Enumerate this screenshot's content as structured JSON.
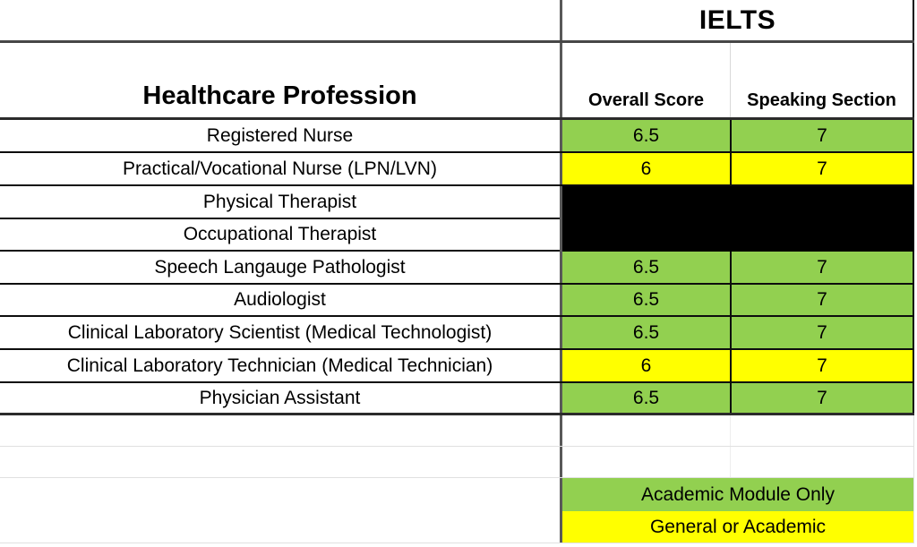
{
  "colors": {
    "green": "#92D050",
    "yellow": "#FFFF00",
    "black_cell": "#000000"
  },
  "header": {
    "test_name": "IELTS",
    "profession_column": "Healthcare Profession",
    "overall_column": "Overall Score",
    "speaking_column": "Speaking Section"
  },
  "rows": [
    {
      "profession": "Registered Nurse",
      "overall": "6.5",
      "speaking": "7",
      "module": "academic"
    },
    {
      "profession": "Practical/Vocational Nurse (LPN/LVN)",
      "overall": "6",
      "speaking": "7",
      "module": "general"
    },
    {
      "profession": "Physical Therapist",
      "overall": "",
      "speaking": "",
      "module": "redacted"
    },
    {
      "profession": "Occupational Therapist",
      "overall": "",
      "speaking": "",
      "module": "redacted"
    },
    {
      "profession": "Speech Langauge Pathologist",
      "overall": "6.5",
      "speaking": "7",
      "module": "academic"
    },
    {
      "profession": "Audiologist",
      "overall": "6.5",
      "speaking": "7",
      "module": "academic"
    },
    {
      "profession": "Clinical Laboratory Scientist (Medical Technologist)",
      "overall": "6.5",
      "speaking": "7",
      "module": "academic"
    },
    {
      "profession": "Clinical Laboratory Technician (Medical Technician)",
      "overall": "6",
      "speaking": "7",
      "module": "general"
    },
    {
      "profession": "Physician Assistant",
      "overall": "6.5",
      "speaking": "7",
      "module": "academic"
    }
  ],
  "legend": [
    {
      "label": "Academic Module Only",
      "color_key": "green"
    },
    {
      "label": "General or Academic",
      "color_key": "yellow"
    }
  ]
}
